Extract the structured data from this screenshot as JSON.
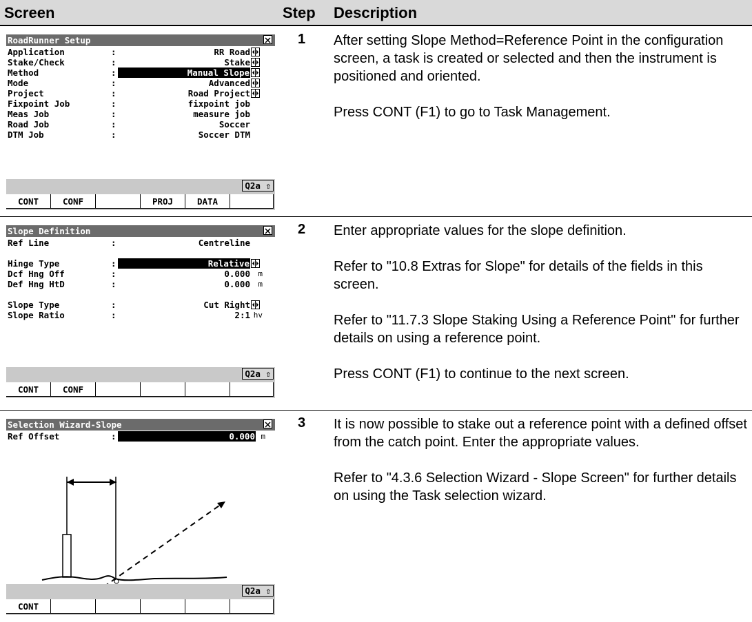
{
  "header": {
    "screen": "Screen",
    "step": "Step",
    "description": "Description"
  },
  "rows": [
    {
      "step": "1",
      "screen": {
        "title": "RoadRunner Setup",
        "separator": ":",
        "status": "Q2a ⇧",
        "fields": [
          {
            "label": "Application",
            "value": "RR Road",
            "toggle": true
          },
          {
            "label": "Stake/Check",
            "value": "Stake",
            "toggle": true
          },
          {
            "label": "Method",
            "value": "Manual Slope",
            "toggle": true,
            "selected": true
          },
          {
            "label": "Mode",
            "value": "Advanced",
            "toggle": true
          },
          {
            "label": "Project",
            "value": "Road Project",
            "toggle": true
          },
          {
            "label": "Fixpoint Job",
            "value": "fixpoint job"
          },
          {
            "label": "Meas Job",
            "value": "measure job"
          },
          {
            "label": "Road Job",
            "value": "Soccer"
          },
          {
            "label": "DTM Job",
            "value": "Soccer DTM"
          }
        ],
        "keys": [
          "CONT",
          "CONF",
          null,
          "PROJ",
          "DATA",
          null
        ]
      },
      "description": [
        "After setting Slope Method=Reference Point in the configuration screen, a task is created or selected and then the instrument is positioned and oriented.",
        "Press CONT (F1) to go to Task Management."
      ]
    },
    {
      "step": "2",
      "screen": {
        "title": "Slope Definition",
        "separator": ":",
        "status": "Q2a ⇧",
        "fields": [
          {
            "label": "Ref Line",
            "value": "Centreline"
          },
          {
            "label": "Hinge Type",
            "value": "Relative",
            "toggle": true,
            "selected": true,
            "gap": true
          },
          {
            "label": "Dcf Hng Off",
            "value": "0.000",
            "unit": "m"
          },
          {
            "label": "Def Hng HtD",
            "value": "0.000",
            "unit": "m"
          },
          {
            "label": "Slope Type",
            "value": "Cut Right",
            "toggle": true,
            "gap": true
          },
          {
            "label": "Slope Ratio",
            "value": "2:1",
            "unit": "hv"
          }
        ],
        "keys": [
          "CONT",
          "CONF",
          null,
          null,
          null,
          null
        ]
      },
      "description": [
        "Enter appropriate values for the slope definition.",
        "Refer to \"10.8 Extras for Slope\" for details of the fields in this screen.",
        "Refer to \"11.7.3 Slope Staking Using a Reference Point\" for further details on using a reference point.",
        "Press CONT (F1) to continue to the next screen."
      ]
    },
    {
      "step": "3",
      "screen": {
        "title": "Selection Wizard-Slope",
        "separator": ":",
        "status": "Q2a ⇧",
        "fields": [
          {
            "label": "Ref Offset",
            "value": "0.000",
            "unit": "m",
            "selected": true,
            "input": true
          }
        ],
        "diagram": true,
        "keys": [
          "CONT",
          null,
          null,
          null,
          null,
          null
        ]
      },
      "description": [
        "It is now possible to stake out a reference point with a defined offset from the catch point. Enter the appropriate values.",
        "Refer to \"4.3.6 Selection Wizard - Slope Screen\" for further details on using the Task selection wizard."
      ]
    }
  ]
}
